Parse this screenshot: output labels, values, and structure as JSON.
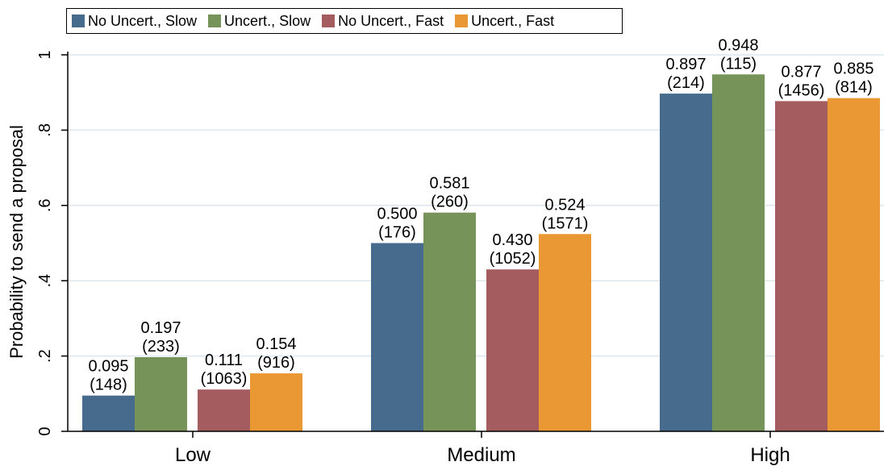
{
  "chart_data": {
    "type": "bar",
    "categories": [
      "Low",
      "Medium",
      "High"
    ],
    "series": [
      {
        "name": "No Uncert., Slow",
        "values": [
          0.095,
          0.5,
          0.897
        ],
        "counts": [
          "(148)",
          "(176)",
          "(214)"
        ],
        "color": "#476b8c"
      },
      {
        "name": "Uncert., Slow",
        "values": [
          0.197,
          0.581,
          0.948
        ],
        "counts": [
          "(233)",
          "(260)",
          "(115)"
        ],
        "color": "#76935a"
      },
      {
        "name": "No Uncert., Fast",
        "values": [
          0.111,
          0.43,
          0.877
        ],
        "counts": [
          "(1063)",
          "(1052)",
          "(1456)"
        ],
        "color": "#a45c5f"
      },
      {
        "name": "Uncert., Fast",
        "values": [
          0.154,
          0.524,
          0.885
        ],
        "counts": [
          "(916)",
          "(1571)",
          "(814)"
        ],
        "color": "#e99833"
      }
    ],
    "value_labels": [
      [
        "0.095",
        "0.500",
        "0.897"
      ],
      [
        "0.197",
        "0.581",
        "0.948"
      ],
      [
        "0.111",
        "0.430",
        "0.877"
      ],
      [
        "0.154",
        "0.524",
        "0.885"
      ]
    ],
    "title": "",
    "xlabel": "",
    "ylabel": "Probability to send a proposal",
    "ylim": [
      0,
      1
    ],
    "yticks": [
      0,
      0.2,
      0.4,
      0.6,
      0.8,
      1
    ],
    "ytick_labels": [
      "0",
      ".2",
      ".4",
      ".6",
      ".8",
      "1"
    ],
    "grid": true,
    "legend_position": "top"
  }
}
